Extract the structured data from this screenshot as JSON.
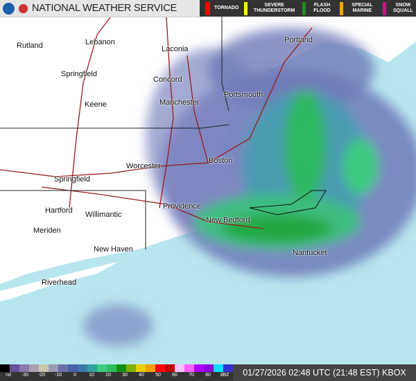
{
  "header": {
    "title": "NATIONAL WEATHER SERVICE",
    "logos": [
      "noaa-logo",
      "nws-logo"
    ]
  },
  "warnings": [
    {
      "label": "TORNADO",
      "color": "#ff0000"
    },
    {
      "label": "SEVERE THUNDERSTORM",
      "color": "#ffff00"
    },
    {
      "label": "FLASH FLOOD",
      "color": "#228b22"
    },
    {
      "label": "SPECIAL MARINE",
      "color": "#ffa500"
    },
    {
      "label": "SNOW SQUALL",
      "color": "#c71585"
    }
  ],
  "cities": [
    "Rutland",
    "Lebanon",
    "Laconia",
    "Portland",
    "Springfield",
    "Concord",
    "Portsmouth",
    "Keene",
    "Manchester",
    "Worcester",
    "Boston",
    "Springfield",
    "Providence",
    "Hartford",
    "Willimantic",
    "New Bedford",
    "Meriden",
    "New Haven",
    "Nantucket",
    "Riverhead"
  ],
  "legend": {
    "ticks": [
      "nd",
      "-30",
      "-20",
      "-10",
      "0",
      "10",
      "20",
      "30",
      "40",
      "50",
      "60",
      "70",
      "80",
      "dBZ"
    ],
    "colors": [
      "#000000",
      "#6a4f9a",
      "#8a7aae",
      "#a8a0b0",
      "#c8c8a8",
      "#9a9ab4",
      "#6b6fa8",
      "#4a60aa",
      "#3a7aaa",
      "#33a0a0",
      "#3ccc80",
      "#2ec060",
      "#109010",
      "#80b000",
      "#e8d000",
      "#f0a000",
      "#ff0000",
      "#c00000",
      "#ffc0ff",
      "#ff60ff",
      "#b000ff",
      "#9000e0",
      "#00e0ff",
      "#3030d0"
    ]
  },
  "timestamp": "01/27/2026 02:48 UTC (21:48 EST) KBOX"
}
